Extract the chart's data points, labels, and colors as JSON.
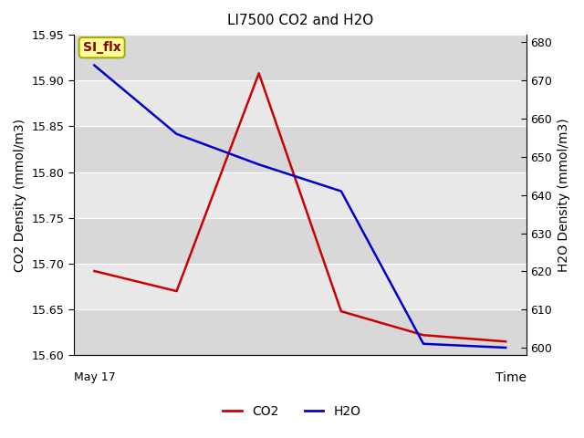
{
  "title": "LI7500 CO2 and H2O",
  "xlabel": "Time",
  "ylabel_left": "CO2 Density (mmol/m3)",
  "ylabel_right": "H2O Density (mmol/m3)",
  "x_values": [
    0,
    1,
    2,
    3,
    4,
    5
  ],
  "co2_values": [
    15.692,
    15.67,
    15.908,
    15.648,
    15.622,
    15.615
  ],
  "h2o_values": [
    674,
    656,
    648,
    641,
    601,
    600
  ],
  "co2_color": "#cc0000",
  "h2o_color": "#0000cc",
  "bg_color": "#e8e8e8",
  "band_color": "#d8d8d8",
  "ylim_left": [
    15.6,
    15.95
  ],
  "ylim_right": [
    598,
    682
  ],
  "yticks_left": [
    15.6,
    15.65,
    15.7,
    15.75,
    15.8,
    15.85,
    15.9,
    15.95
  ],
  "yticks_right": [
    600,
    610,
    620,
    630,
    640,
    650,
    660,
    670,
    680
  ],
  "annotation_text": "May 17",
  "legend_label": "SI_flx",
  "line_width": 1.8,
  "si_flx_facecolor": "#ffff99",
  "si_flx_edgecolor": "#aaaa00",
  "si_flx_textcolor": "#8b0000"
}
